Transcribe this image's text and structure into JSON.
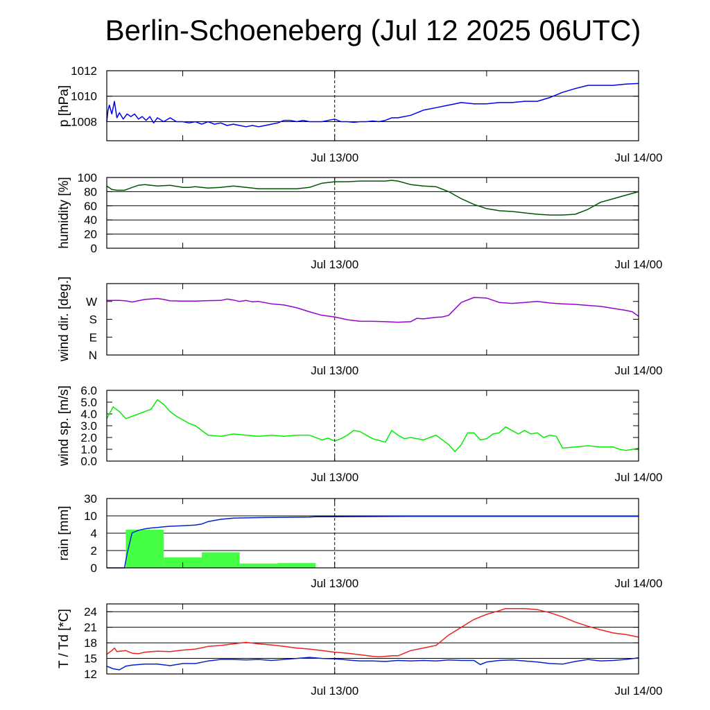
{
  "title": "Berlin-Schoeneberg (Jul 12 2025 06UTC)",
  "time_axis": {
    "start_hours": -18,
    "end_hours": 24,
    "tick_hours": [
      -12,
      0,
      12,
      24
    ],
    "tick_labels": [
      {
        "hour": 0,
        "label": "Jul 13/00"
      },
      {
        "hour": 24,
        "label": "Jul 14/00"
      }
    ],
    "marker_hour": 0
  },
  "colors": {
    "pressure": "#0000ee",
    "humidity": "#005500",
    "wind_dir": "#9900cc",
    "wind_speed": "#00ee00",
    "rain_bars": "#44ff44",
    "rain_cumulative": "#0022cc",
    "temperature": "#ee2222",
    "dewpoint": "#0022cc",
    "grid": "#000000"
  },
  "chart_data": [
    {
      "type": "line",
      "ylabel": "p [hPa]",
      "ylim": [
        1006.5,
        1012
      ],
      "yticks": [
        {
          "value": 1008,
          "label": "1008"
        },
        {
          "value": 1010,
          "label": "1010"
        },
        {
          "value": 1012,
          "label": "1012"
        }
      ],
      "gridlines": [
        1008,
        1010,
        1012
      ],
      "grid": true,
      "series": [
        {
          "color_key": "pressure",
          "x": [
            -18,
            -17.9,
            -17.8,
            -17.6,
            -17.4,
            -17.2,
            -17,
            -16.7,
            -16.4,
            -16.1,
            -15.8,
            -15.5,
            -15.2,
            -14.9,
            -14.6,
            -14.3,
            -14,
            -13.5,
            -13,
            -12.5,
            -12,
            -11.5,
            -11,
            -10.5,
            -10,
            -9.5,
            -9,
            -8.5,
            -8,
            -7.5,
            -7,
            -6.5,
            -6,
            -5.5,
            -5,
            -4.5,
            -4,
            -3.5,
            -3,
            -2.5,
            -2,
            -1.5,
            -1,
            -0.5,
            0,
            0.5,
            1,
            1.5,
            2,
            2.5,
            3,
            3.5,
            4,
            4.5,
            5,
            6,
            7,
            8,
            9,
            10,
            11,
            12,
            13,
            14,
            15,
            16,
            17,
            18,
            19,
            20,
            21,
            22,
            23,
            24
          ],
          "y": [
            1008.0,
            1008.9,
            1009.3,
            1008.6,
            1009.6,
            1008.3,
            1008.7,
            1008.2,
            1008.6,
            1008.4,
            1008.6,
            1008.2,
            1008.4,
            1008.1,
            1008.4,
            1007.9,
            1008.3,
            1008.0,
            1008.3,
            1008.0,
            1008.0,
            1007.9,
            1008.0,
            1007.8,
            1008.0,
            1007.8,
            1007.9,
            1007.7,
            1007.8,
            1007.7,
            1007.6,
            1007.7,
            1007.6,
            1007.7,
            1007.8,
            1007.9,
            1008.1,
            1008.1,
            1008.0,
            1008.1,
            1008.0,
            1008.0,
            1008.0,
            1008.1,
            1008.2,
            1008.0,
            1008.0,
            1007.95,
            1008.0,
            1008.0,
            1008.05,
            1008.0,
            1008.1,
            1008.3,
            1008.3,
            1008.5,
            1008.9,
            1009.1,
            1009.3,
            1009.5,
            1009.4,
            1009.4,
            1009.5,
            1009.5,
            1009.6,
            1009.6,
            1009.9,
            1010.3,
            1010.6,
            1010.85,
            1010.85,
            1010.85,
            1010.95,
            1011.0
          ]
        }
      ]
    },
    {
      "type": "line",
      "ylabel": "humidity [%]",
      "ylim": [
        0,
        100
      ],
      "yticks": [
        {
          "value": 0,
          "label": "0"
        },
        {
          "value": 20,
          "label": "20"
        },
        {
          "value": 40,
          "label": "40"
        },
        {
          "value": 60,
          "label": "60"
        },
        {
          "value": 80,
          "label": "80"
        },
        {
          "value": 100,
          "label": "100"
        }
      ],
      "gridlines": [
        0,
        20,
        40,
        60,
        80,
        100
      ],
      "grid": true,
      "series": [
        {
          "color_key": "humidity",
          "x": [
            -18,
            -17.6,
            -17.2,
            -16.6,
            -16,
            -15.5,
            -15,
            -14,
            -13,
            -12,
            -11.5,
            -11,
            -10,
            -9,
            -8,
            -7,
            -6,
            -5,
            -4,
            -3,
            -2,
            -1,
            0,
            1,
            2,
            3,
            4,
            4.5,
            5,
            6,
            7,
            8,
            9,
            10,
            11,
            12,
            13,
            14,
            15,
            16,
            17,
            18,
            19,
            20,
            21,
            22,
            23,
            24
          ],
          "y": [
            88,
            83,
            82,
            82,
            86,
            89,
            90,
            88,
            89,
            86,
            86,
            87,
            85,
            86,
            88,
            86,
            84,
            84,
            84,
            84,
            86,
            92,
            94,
            94,
            95,
            95,
            95,
            96,
            95,
            90,
            88,
            87,
            80,
            70,
            62,
            56,
            53,
            52,
            50,
            48,
            47,
            47,
            48,
            55,
            65,
            70,
            75,
            80
          ]
        }
      ]
    },
    {
      "type": "line",
      "ylabel": "wind dir. [deg.]",
      "ylim": [
        0,
        360
      ],
      "yticks": [
        {
          "value": 0,
          "label": "N"
        },
        {
          "value": 90,
          "label": "E"
        },
        {
          "value": 180,
          "label": "S"
        },
        {
          "value": 270,
          "label": "W"
        }
      ],
      "gridlines": [],
      "grid": false,
      "series": [
        {
          "color_key": "wind_dir",
          "x": [
            -18,
            -17,
            -16.5,
            -16,
            -15,
            -14,
            -13.5,
            -13,
            -12,
            -11,
            -10,
            -9,
            -8.5,
            -8,
            -7.5,
            -7,
            -6.5,
            -6,
            -5,
            -4,
            -3,
            -2,
            -1,
            0,
            0.5,
            1,
            2,
            3,
            4,
            5,
            6,
            6.5,
            7,
            8,
            8.5,
            9,
            10,
            11,
            12,
            13,
            14,
            15,
            16,
            17,
            18,
            19,
            20,
            21,
            22,
            23,
            23.5,
            24
          ],
          "y": [
            275,
            275,
            273,
            267,
            280,
            285,
            280,
            273,
            272,
            272,
            274,
            275,
            282,
            277,
            270,
            275,
            268,
            270,
            258,
            252,
            238,
            218,
            200,
            192,
            185,
            178,
            170,
            170,
            168,
            165,
            168,
            185,
            182,
            190,
            192,
            200,
            265,
            290,
            287,
            265,
            260,
            265,
            270,
            262,
            258,
            255,
            250,
            245,
            235,
            225,
            218,
            195
          ]
        }
      ]
    },
    {
      "type": "line",
      "ylabel": "wind sp. [m/s]",
      "ylim": [
        0,
        6
      ],
      "yticks": [
        {
          "value": 0,
          "label": "0.0"
        },
        {
          "value": 1,
          "label": "1.0"
        },
        {
          "value": 2,
          "label": "2.0"
        },
        {
          "value": 3,
          "label": "3.0"
        },
        {
          "value": 4,
          "label": "4.0"
        },
        {
          "value": 5,
          "label": "5.0"
        },
        {
          "value": 6,
          "label": "6.0"
        }
      ],
      "gridlines": [],
      "grid": false,
      "series": [
        {
          "color_key": "wind_speed",
          "x": [
            -18,
            -17.5,
            -17,
            -16.5,
            -16,
            -15,
            -14.5,
            -14,
            -13.5,
            -13,
            -12.5,
            -12,
            -11.5,
            -11,
            -10,
            -9,
            -8,
            -7,
            -6,
            -5,
            -4,
            -3,
            -2,
            -1,
            -0.5,
            0,
            0.5,
            1,
            1.5,
            2,
            3,
            4,
            4.5,
            5,
            5.5,
            6,
            7,
            8,
            9,
            9.5,
            10,
            10.5,
            11,
            11.5,
            12,
            12.5,
            13,
            13.5,
            14,
            14.5,
            15,
            15.5,
            16,
            16.5,
            17,
            17.5,
            18,
            19,
            20,
            21,
            22,
            22.5,
            23,
            23.5,
            24
          ],
          "y": [
            3.6,
            4.6,
            4.2,
            3.6,
            3.8,
            4.2,
            4.4,
            5.2,
            4.8,
            4.2,
            3.8,
            3.5,
            3.2,
            3.0,
            2.2,
            2.1,
            2.3,
            2.2,
            2.1,
            2.2,
            2.1,
            2.2,
            2.2,
            1.8,
            1.95,
            1.7,
            1.9,
            2.2,
            2.6,
            2.5,
            1.9,
            1.6,
            2.6,
            2.2,
            1.9,
            2.0,
            1.8,
            2.2,
            1.4,
            0.8,
            1.4,
            2.4,
            2.4,
            1.8,
            1.9,
            2.3,
            2.4,
            2.9,
            2.6,
            2.3,
            2.6,
            2.3,
            2.4,
            2.0,
            2.2,
            2.1,
            1.1,
            1.2,
            1.3,
            1.2,
            1.2,
            1.0,
            0.9,
            1.0,
            1.1
          ]
        }
      ]
    },
    {
      "type": "bar",
      "ylabel": "rain [mm]",
      "ylim": [
        0,
        30
      ],
      "yticks": [
        {
          "value": 0,
          "label": "0"
        },
        {
          "value": 2,
          "label": "2"
        },
        {
          "value": 4,
          "label": "4"
        },
        {
          "value": 10,
          "label": "10"
        },
        {
          "value": 30,
          "label": "30"
        }
      ],
      "gridlines": [
        2,
        4,
        10,
        30
      ],
      "grid": true,
      "scale": "nonlinear (0, 2, 4, 10, 30)",
      "bars": [
        {
          "start": -16.5,
          "end": -13.5,
          "value": 5.2
        },
        {
          "start": -13.5,
          "end": -10.5,
          "value": 1.2
        },
        {
          "start": -10.5,
          "end": -7.5,
          "value": 1.8
        },
        {
          "start": -7.5,
          "end": -4.5,
          "value": 0.5
        },
        {
          "start": -4.5,
          "end": -1.5,
          "value": 0.55
        },
        {
          "start": -1.5,
          "end": 1.5,
          "value": 0.04
        },
        {
          "start": 7.5,
          "end": 10.5,
          "value": 0.04
        }
      ],
      "series": [
        {
          "color_key": "rain_cumulative",
          "x": [
            -18,
            -16.6,
            -16.4,
            -16.0,
            -15.5,
            -15.0,
            -14.5,
            -14.0,
            -13.5,
            -13.0,
            -12.0,
            -11.0,
            -10.5,
            -10.0,
            -9.0,
            -8.0,
            -6.0,
            -4.0,
            -2.0,
            -1.5,
            0,
            6,
            12,
            18,
            24
          ],
          "y": [
            0,
            0,
            1.6,
            4.1,
            5.0,
            5.5,
            5.8,
            6.0,
            6.2,
            6.4,
            6.6,
            6.8,
            7.2,
            8.0,
            8.8,
            9.2,
            9.4,
            9.5,
            9.6,
            9.7,
            9.7,
            9.8,
            9.8,
            9.8,
            9.8
          ]
        }
      ]
    },
    {
      "type": "line",
      "ylabel": "T / Td [*C]",
      "ylim": [
        12,
        25.5
      ],
      "yticks": [
        {
          "value": 12,
          "label": "12"
        },
        {
          "value": 15,
          "label": "15"
        },
        {
          "value": 18,
          "label": "18"
        },
        {
          "value": 21,
          "label": "21"
        },
        {
          "value": 24,
          "label": "24"
        }
      ],
      "gridlines": [
        15,
        18,
        21,
        24
      ],
      "grid": true,
      "series": [
        {
          "color_key": "temperature",
          "x": [
            -18,
            -17.6,
            -17.4,
            -17.2,
            -16.5,
            -16,
            -15.5,
            -15,
            -14,
            -13,
            -12,
            -11,
            -10,
            -9,
            -8,
            -7,
            -6,
            -5,
            -4,
            -3,
            -2,
            -1,
            0,
            1,
            2,
            3,
            3.5,
            4,
            4.5,
            5,
            5.5,
            6,
            7,
            8,
            9,
            10,
            11,
            12,
            13,
            13.5,
            14,
            15,
            16,
            17,
            18,
            19,
            20,
            21,
            22,
            23,
            24
          ],
          "y": [
            15.8,
            16.5,
            17.0,
            16.3,
            16.5,
            16.0,
            15.9,
            16.2,
            16.4,
            16.3,
            16.6,
            16.8,
            17.3,
            17.5,
            17.8,
            18.1,
            17.8,
            17.6,
            17.3,
            17.0,
            16.8,
            16.5,
            16.2,
            16.0,
            15.7,
            15.4,
            15.3,
            15.4,
            15.5,
            15.5,
            16.0,
            16.5,
            17.0,
            17.5,
            19.5,
            21.0,
            22.5,
            23.5,
            24.2,
            24.6,
            24.6,
            24.6,
            24.4,
            23.8,
            23.0,
            22.0,
            21.2,
            20.5,
            19.9,
            19.6,
            19.1
          ]
        },
        {
          "color_key": "dewpoint",
          "x": [
            -18,
            -17.5,
            -17,
            -16.5,
            -16,
            -15,
            -14,
            -13,
            -12,
            -11,
            -10,
            -9,
            -8,
            -7,
            -6,
            -5,
            -4,
            -3,
            -2,
            -1,
            0,
            1,
            2,
            3,
            4,
            5,
            6,
            7,
            8,
            9,
            10,
            11,
            11.5,
            12,
            13,
            14,
            15,
            16,
            17,
            18,
            19,
            20,
            21,
            22,
            23,
            24
          ],
          "y": [
            13.5,
            13.0,
            12.8,
            13.5,
            13.7,
            13.9,
            13.9,
            13.6,
            14.0,
            14.0,
            14.5,
            14.8,
            14.8,
            14.7,
            14.8,
            14.6,
            14.8,
            15.0,
            15.2,
            15.0,
            14.9,
            14.7,
            14.5,
            14.5,
            14.4,
            14.6,
            14.5,
            14.6,
            14.5,
            14.7,
            14.6,
            14.6,
            13.8,
            14.3,
            14.6,
            14.7,
            14.5,
            14.3,
            14.0,
            13.9,
            14.4,
            14.8,
            14.5,
            14.6,
            14.8,
            15.1
          ]
        }
      ]
    }
  ]
}
